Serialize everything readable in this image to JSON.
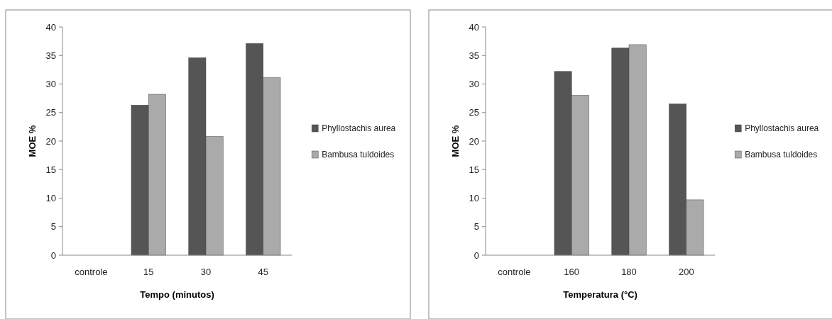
{
  "chart_data": [
    {
      "type": "bar",
      "xlabel": "Tempo (minutos)",
      "ylabel": "MOE %",
      "categories": [
        "controle",
        "15",
        "30",
        "45"
      ],
      "series": [
        {
          "name": "Phyllostachis aurea",
          "color": "#555555",
          "values": [
            0,
            26.3,
            34.6,
            37.1
          ]
        },
        {
          "name": "Bambusa tuldoides",
          "color": "#aaaaaa",
          "values": [
            0,
            28.2,
            20.8,
            31.1
          ]
        }
      ],
      "ylim": [
        0,
        40
      ],
      "yticks": [
        0,
        5,
        10,
        15,
        20,
        25,
        30,
        35,
        40
      ],
      "grid": false,
      "legend": "right"
    },
    {
      "type": "bar",
      "xlabel": "Temperatura (°C)",
      "ylabel": "MOE %",
      "categories": [
        "controle",
        "160",
        "180",
        "200"
      ],
      "series": [
        {
          "name": "Phyllostachis aurea",
          "color": "#555555",
          "values": [
            0,
            32.2,
            36.3,
            26.5
          ]
        },
        {
          "name": "Bambusa tuldoides",
          "color": "#aaaaaa",
          "values": [
            0,
            28.0,
            36.9,
            9.7
          ]
        }
      ],
      "ylim": [
        0,
        40
      ],
      "yticks": [
        0,
        5,
        10,
        15,
        20,
        25,
        30,
        35,
        40
      ],
      "grid": false,
      "legend": "right"
    }
  ]
}
